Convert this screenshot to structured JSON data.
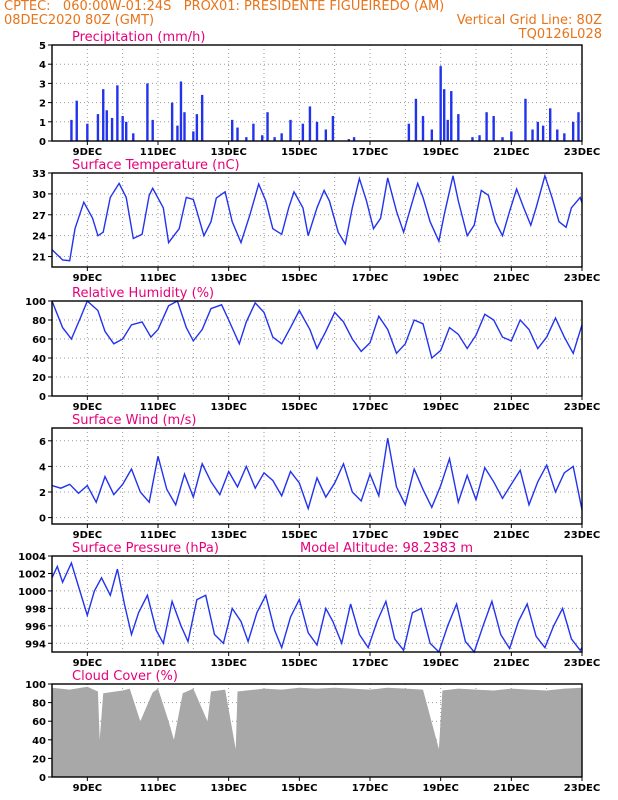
{
  "header": {
    "line1_left": "CPTEC:   060:00W-01:24S   PROX01: PRESIDENTE FIGUEIREDO (AM)",
    "line2_left": "08DEC2020 80Z (GMT)",
    "line2_right": "Vertical Grid Line: 80Z",
    "line3_right": "TQ0126L028"
  },
  "colors": {
    "header": "#e8741a",
    "title": "#e8007a",
    "series": "#2233ee",
    "cloud": "#a8a8a8"
  },
  "x_ticks": [
    "9DEC",
    "11DEC",
    "13DEC",
    "15DEC",
    "17DEC",
    "19DEC",
    "21DEC",
    "23DEC"
  ],
  "chart_data": [
    {
      "type": "bar",
      "title": "Precipitation (mm/h)",
      "ylim": [
        0,
        5
      ],
      "yticks": [
        "0",
        "1",
        "2",
        "3",
        "4",
        "5"
      ],
      "x_days": [
        8.55,
        8.7,
        9.0,
        9.3,
        9.45,
        9.55,
        9.7,
        9.85,
        10.0,
        10.1,
        10.3,
        10.7,
        10.85,
        11.4,
        11.55,
        11.65,
        11.75,
        12.0,
        12.1,
        12.25,
        13.1,
        13.25,
        13.5,
        13.7,
        13.95,
        14.1,
        14.3,
        14.5,
        14.75,
        15.1,
        15.3,
        15.5,
        15.75,
        15.95,
        16.4,
        16.55,
        17.0,
        18.1,
        18.3,
        18.5,
        18.75,
        19.0,
        19.1,
        19.2,
        19.3,
        19.5,
        19.9,
        20.1,
        20.3,
        20.5,
        20.75,
        21.0,
        21.4,
        21.6,
        21.75,
        21.9,
        22.1,
        22.3,
        22.5,
        22.75,
        22.9
      ],
      "values": [
        1.1,
        2.1,
        0.9,
        1.4,
        2.7,
        1.6,
        1.2,
        2.9,
        1.3,
        1.0,
        0.4,
        3.0,
        1.1,
        2.0,
        0.8,
        3.1,
        1.5,
        0.5,
        1.4,
        2.4,
        1.1,
        0.7,
        0.2,
        0.9,
        0.3,
        1.5,
        0.2,
        0.4,
        1.1,
        0.9,
        1.8,
        1.0,
        0.6,
        1.3,
        0.1,
        0.2,
        0.0,
        0.9,
        2.2,
        1.3,
        0.6,
        3.9,
        2.7,
        1.1,
        2.6,
        1.4,
        0.2,
        0.3,
        1.5,
        1.3,
        0.2,
        0.5,
        2.2,
        0.6,
        1.0,
        0.8,
        1.7,
        0.6,
        0.4,
        1.0,
        1.5
      ]
    },
    {
      "type": "line",
      "title": "Surface Temperature (nC)",
      "ylim": [
        19.5,
        33
      ],
      "yticks": [
        "21",
        "24",
        "27",
        "30",
        "33"
      ],
      "x_days": [
        8.0,
        8.3,
        8.5,
        8.65,
        8.9,
        9.15,
        9.3,
        9.45,
        9.65,
        9.9,
        10.1,
        10.3,
        10.55,
        10.75,
        10.85,
        11.15,
        11.3,
        11.6,
        11.8,
        12.0,
        12.1,
        12.3,
        12.5,
        12.65,
        12.9,
        13.1,
        13.35,
        13.6,
        13.85,
        14.05,
        14.25,
        14.5,
        14.7,
        14.85,
        15.1,
        15.25,
        15.5,
        15.7,
        15.85,
        16.1,
        16.3,
        16.5,
        16.7,
        16.9,
        17.1,
        17.3,
        17.5,
        17.75,
        17.95,
        18.15,
        18.35,
        18.5,
        18.7,
        18.95,
        19.1,
        19.35,
        19.5,
        19.75,
        19.95,
        20.15,
        20.35,
        20.55,
        20.75,
        20.95,
        21.15,
        21.35,
        21.55,
        21.7,
        21.95,
        22.15,
        22.35,
        22.55,
        22.7,
        22.95,
        23.0
      ],
      "values": [
        22.0,
        20.5,
        20.4,
        25.0,
        28.8,
        26.5,
        24.0,
        24.5,
        29.5,
        31.5,
        29.5,
        23.6,
        24.2,
        29.8,
        30.8,
        28.0,
        23.0,
        25.0,
        29.5,
        29.2,
        27.5,
        24.0,
        26.0,
        29.4,
        30.3,
        26.0,
        23.0,
        27.0,
        31.4,
        29.0,
        25.0,
        24.2,
        28.0,
        30.3,
        28.0,
        24.0,
        28.0,
        30.5,
        29.0,
        24.5,
        22.8,
        28.0,
        32.2,
        29.0,
        25.0,
        26.5,
        32.3,
        27.5,
        24.5,
        28.0,
        31.5,
        29.5,
        26.0,
        23.2,
        27.0,
        32.6,
        29.0,
        24.0,
        25.5,
        30.5,
        29.8,
        26.0,
        24.0,
        27.5,
        30.7,
        28.0,
        25.5,
        28.0,
        32.6,
        29.5,
        26.0,
        25.2,
        28.0,
        29.5,
        28.7
      ]
    },
    {
      "type": "line",
      "title": "Relative Humidity (%)",
      "ylim": [
        0,
        100
      ],
      "yticks": [
        "0",
        "20",
        "40",
        "60",
        "80",
        "100"
      ],
      "x_days": [
        8.0,
        8.3,
        8.55,
        8.8,
        9.0,
        9.3,
        9.5,
        9.75,
        10.0,
        10.25,
        10.55,
        10.8,
        11.0,
        11.3,
        11.55,
        11.8,
        12.0,
        12.25,
        12.5,
        12.8,
        13.0,
        13.3,
        13.5,
        13.75,
        14.0,
        14.25,
        14.5,
        14.75,
        15.0,
        15.3,
        15.5,
        15.75,
        16.0,
        16.25,
        16.5,
        16.75,
        17.0,
        17.25,
        17.5,
        17.75,
        18.0,
        18.25,
        18.5,
        18.75,
        19.0,
        19.25,
        19.5,
        19.75,
        20.0,
        20.25,
        20.5,
        20.75,
        21.0,
        21.25,
        21.5,
        21.75,
        22.0,
        22.25,
        22.5,
        22.75,
        23.0
      ],
      "values": [
        100,
        72,
        60,
        82,
        100,
        90,
        68,
        55,
        60,
        75,
        78,
        62,
        70,
        95,
        100,
        72,
        58,
        70,
        92,
        96,
        80,
        55,
        78,
        98,
        88,
        62,
        55,
        72,
        90,
        70,
        50,
        68,
        88,
        78,
        60,
        47,
        56,
        84,
        70,
        45,
        55,
        80,
        76,
        40,
        48,
        72,
        65,
        50,
        64,
        86,
        80,
        62,
        58,
        80,
        70,
        50,
        62,
        82,
        62,
        45,
        75
      ]
    },
    {
      "type": "line",
      "title": "Surface Wind (m/s)",
      "ylim": [
        -0.5,
        7
      ],
      "yticks": [
        "0",
        "2",
        "4",
        "6"
      ],
      "x_days": [
        8.0,
        8.25,
        8.5,
        8.75,
        9.0,
        9.25,
        9.5,
        9.75,
        10.0,
        10.25,
        10.5,
        10.75,
        11.0,
        11.25,
        11.5,
        11.75,
        12.0,
        12.25,
        12.5,
        12.75,
        13.0,
        13.25,
        13.5,
        13.75,
        14.0,
        14.25,
        14.5,
        14.75,
        15.0,
        15.25,
        15.5,
        15.75,
        16.0,
        16.25,
        16.5,
        16.75,
        17.0,
        17.25,
        17.5,
        17.75,
        18.0,
        18.25,
        18.5,
        18.75,
        19.0,
        19.25,
        19.5,
        19.75,
        20.0,
        20.25,
        20.5,
        20.75,
        21.0,
        21.25,
        21.5,
        21.75,
        22.0,
        22.25,
        22.5,
        22.75,
        23.0
      ],
      "values": [
        2.5,
        2.3,
        2.6,
        1.9,
        2.5,
        1.2,
        3.2,
        1.8,
        2.6,
        3.8,
        2.0,
        1.2,
        4.8,
        2.2,
        1.0,
        3.4,
        1.6,
        4.2,
        2.8,
        1.8,
        3.6,
        2.4,
        4.0,
        2.3,
        3.5,
        2.9,
        1.7,
        3.6,
        2.7,
        0.7,
        3.1,
        1.6,
        2.7,
        4.2,
        2.0,
        1.3,
        3.4,
        1.7,
        6.2,
        2.4,
        1.0,
        3.8,
        2.2,
        0.8,
        2.5,
        4.6,
        1.2,
        3.3,
        1.4,
        3.9,
        2.8,
        1.5,
        2.6,
        3.7,
        1.0,
        2.8,
        4.1,
        2.0,
        3.5,
        4.0,
        0.6
      ]
    },
    {
      "type": "line",
      "title": "Surface Pressure (hPa)",
      "annotation": "Model Altitude: 98.2383 m",
      "ylim": [
        993,
        1004
      ],
      "yticks": [
        "994",
        "996",
        "998",
        "1000",
        "1002",
        "1004"
      ],
      "x_days": [
        8.0,
        8.15,
        8.3,
        8.55,
        8.75,
        9.0,
        9.2,
        9.4,
        9.65,
        9.85,
        10.05,
        10.25,
        10.45,
        10.7,
        10.95,
        11.15,
        11.4,
        11.65,
        11.85,
        12.1,
        12.35,
        12.6,
        12.85,
        13.1,
        13.35,
        13.55,
        13.8,
        14.05,
        14.3,
        14.5,
        14.75,
        15.0,
        15.25,
        15.5,
        15.75,
        15.95,
        16.2,
        16.45,
        16.7,
        16.95,
        17.2,
        17.45,
        17.7,
        17.95,
        18.2,
        18.45,
        18.7,
        18.95,
        19.2,
        19.45,
        19.7,
        19.95,
        20.2,
        20.45,
        20.7,
        20.95,
        21.2,
        21.45,
        21.7,
        21.95,
        22.2,
        22.45,
        22.7,
        22.95,
        23.0
      ],
      "values": [
        1001.5,
        1002.8,
        1001.0,
        1003.2,
        1000.5,
        997.2,
        1000.0,
        1001.5,
        999.5,
        1002.5,
        998.5,
        995.0,
        997.5,
        999.5,
        995.5,
        994.0,
        998.8,
        996.0,
        994.2,
        999.0,
        999.5,
        995.0,
        994.0,
        998.0,
        996.5,
        994.2,
        997.5,
        999.5,
        995.5,
        993.5,
        997.0,
        999.0,
        995.2,
        993.8,
        998.0,
        996.5,
        994.0,
        998.5,
        995.0,
        993.5,
        996.5,
        998.8,
        994.5,
        993.2,
        997.5,
        998.0,
        994.0,
        993.0,
        996.0,
        998.5,
        994.2,
        993.0,
        996.0,
        998.8,
        995.0,
        993.4,
        996.5,
        998.5,
        994.8,
        993.5,
        996.0,
        998.0,
        994.5,
        993.2,
        993.5
      ]
    },
    {
      "type": "area",
      "title": "Cloud Cover (%)",
      "ylim": [
        0,
        100
      ],
      "yticks": [
        "0",
        "20",
        "40",
        "60",
        "80",
        "100"
      ],
      "x_days": [
        8.0,
        8.5,
        9.0,
        9.3,
        9.35,
        9.45,
        10.0,
        10.2,
        10.5,
        10.85,
        11.0,
        11.3,
        11.45,
        11.7,
        12.0,
        12.4,
        12.5,
        12.9,
        13.2,
        13.25,
        13.5,
        14.0,
        14.5,
        15.0,
        15.5,
        16.0,
        16.5,
        17.0,
        17.5,
        18.0,
        18.5,
        18.95,
        19.05,
        19.5,
        20.0,
        20.5,
        21.0,
        21.5,
        22.0,
        22.5,
        23.0
      ],
      "values": [
        96,
        94,
        97,
        92,
        40,
        90,
        93,
        95,
        60,
        91,
        95,
        60,
        40,
        90,
        95,
        60,
        92,
        94,
        30,
        92,
        93,
        95,
        94,
        96,
        95,
        96,
        95,
        94,
        96,
        95,
        94,
        30,
        93,
        95,
        94,
        93,
        95,
        94,
        93,
        95,
        96
      ]
    }
  ]
}
